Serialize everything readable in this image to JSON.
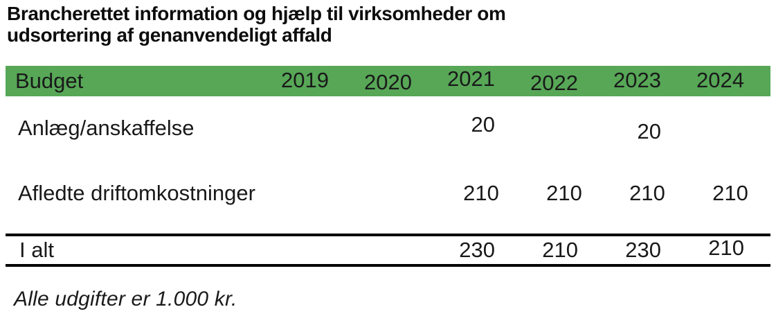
{
  "title": {
    "line1": "Brancherettet information og hjælp til virksomheder om",
    "line2": "udsortering af genanvendeligt affald"
  },
  "table": {
    "header_label": "Budget",
    "years": [
      "2019",
      "2020",
      "2021",
      "2022",
      "2023",
      "2024"
    ],
    "rows": [
      {
        "label": "Anlæg/anskaffelse",
        "values": [
          "",
          "",
          "20",
          "",
          "20",
          ""
        ]
      },
      {
        "label": "Afledte driftomkostninger",
        "values": [
          "",
          "",
          "210",
          "210",
          "210",
          "210"
        ]
      }
    ],
    "total": {
      "label": "I alt",
      "values": [
        "",
        "",
        "230",
        "210",
        "230",
        "210"
      ]
    }
  },
  "footnote": "Alle udgifter er 1.000 kr.",
  "colors": {
    "header_green": "#57A757",
    "rule_black": "#000000"
  }
}
